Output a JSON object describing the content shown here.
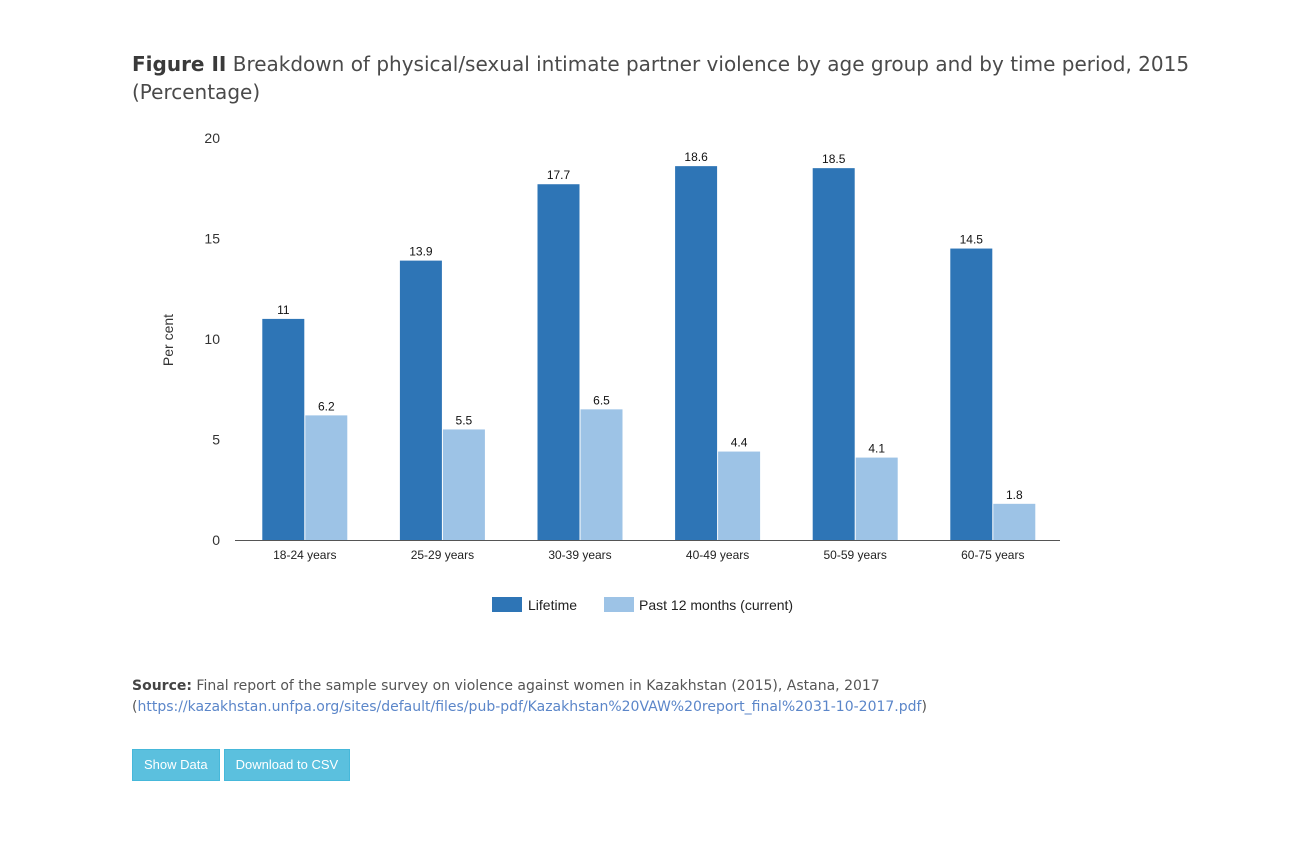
{
  "header": {
    "figure_label": "Figure II",
    "title": "Breakdown of physical/sexual intimate partner violence by age group and by time period, 2015 (Percentage)"
  },
  "chart_data": {
    "type": "bar",
    "categories": [
      "18-24 years",
      "25-29 years",
      "30-39 years",
      "40-49 years",
      "50-59 years",
      "60-75 years"
    ],
    "series": [
      {
        "name": "Lifetime",
        "values": [
          11,
          13.9,
          17.7,
          18.6,
          18.5,
          14.5
        ],
        "color": "#2e75b6"
      },
      {
        "name": "Past 12 months (current)",
        "values": [
          6.2,
          5.5,
          6.5,
          4.4,
          4.1,
          1.8
        ],
        "color": "#9dc3e6"
      }
    ],
    "ylabel": "Per cent",
    "xlabel": "",
    "ylim": [
      0,
      20
    ],
    "yticks": [
      0,
      5,
      10,
      15,
      20
    ],
    "legend_position": "bottom",
    "grid": false
  },
  "source": {
    "label": "Source:",
    "text": "Final report of the sample survey on violence against women in Kazakhstan (2015), Astana, 2017",
    "paren_open": "(",
    "url": "https://kazakhstan.unfpa.org/sites/default/files/pub-pdf/Kazakhstan%20VAW%20report_final%2031-10-2017.pdf",
    "paren_close": ")"
  },
  "buttons": {
    "show_data": "Show Data",
    "download_csv": "Download to CSV"
  }
}
